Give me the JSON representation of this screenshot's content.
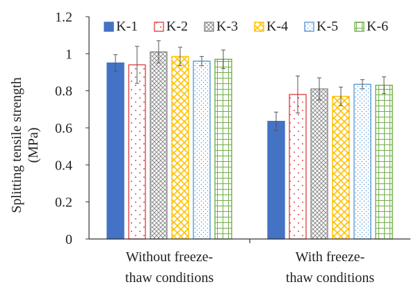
{
  "chart_data": {
    "type": "bar",
    "ylabel_line1": "Splitting tensile strength",
    "ylabel_line2": "(MPa)",
    "categories": [
      [
        "Without freeze-",
        "thaw conditions"
      ],
      [
        "With freeze-",
        "thaw conditions"
      ]
    ],
    "ylim": [
      0,
      1.2
    ],
    "yticks": [
      "0",
      "0.2",
      "0.4",
      "0.6",
      "0.8",
      "1",
      "1.2"
    ],
    "ytick_values": [
      0,
      0.2,
      0.4,
      0.6,
      0.8,
      1.0,
      1.2
    ],
    "grid": false,
    "legend_position": "top",
    "series": [
      {
        "name": "K-1",
        "color": "#4472C4",
        "pattern": "solid",
        "values": [
          0.95,
          0.635
        ],
        "errors": [
          0.045,
          0.05
        ]
      },
      {
        "name": "K-2",
        "color": "#E0484A",
        "pattern": "dots",
        "values": [
          0.94,
          0.78
        ],
        "errors": [
          0.1,
          0.1
        ]
      },
      {
        "name": "K-3",
        "color": "#8C8C8C",
        "pattern": "crosshatch",
        "values": [
          1.01,
          0.81
        ],
        "errors": [
          0.06,
          0.06
        ]
      },
      {
        "name": "K-4",
        "color": "#FFC000",
        "pattern": "diag",
        "values": [
          0.985,
          0.77
        ],
        "errors": [
          0.05,
          0.05
        ]
      },
      {
        "name": "K-5",
        "color": "#5B9BD5",
        "pattern": "finedots",
        "values": [
          0.96,
          0.835
        ],
        "errors": [
          0.025,
          0.025
        ]
      },
      {
        "name": "K-6",
        "color": "#70AD47",
        "pattern": "grid",
        "values": [
          0.97,
          0.83
        ],
        "errors": [
          0.05,
          0.045
        ]
      }
    ]
  }
}
